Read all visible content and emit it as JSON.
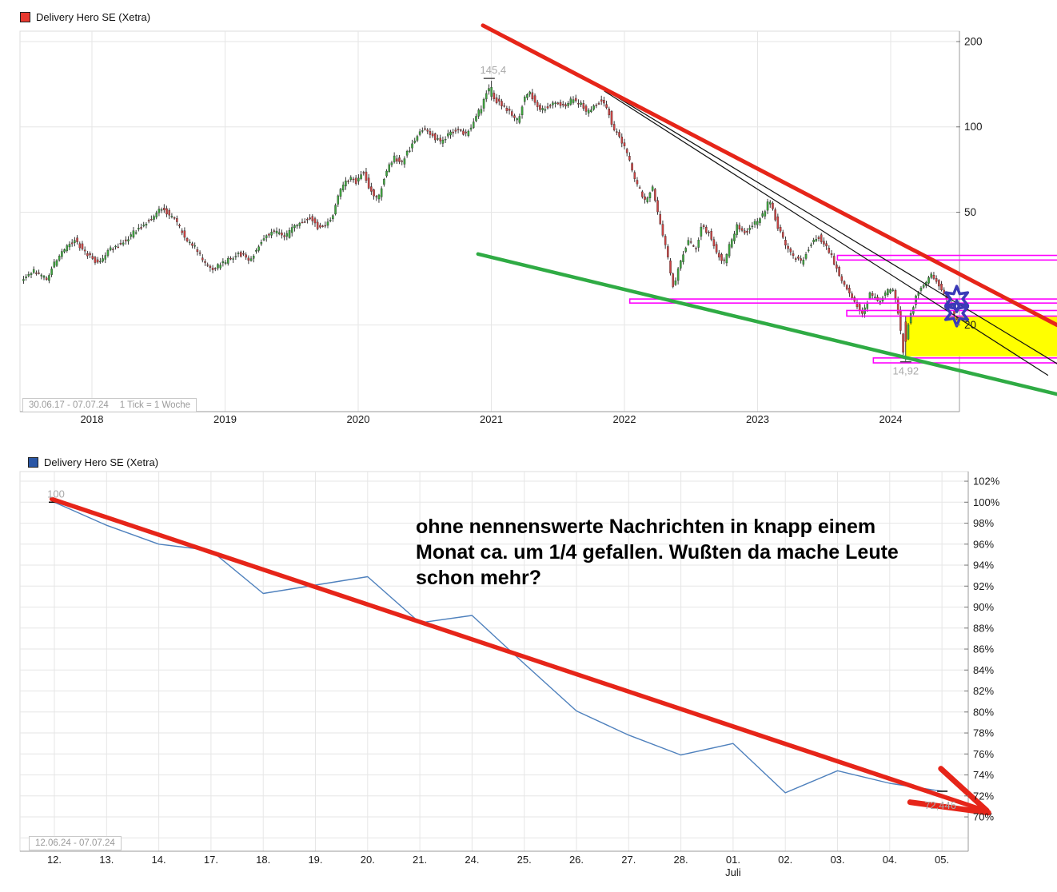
{
  "chart_data": [
    {
      "type": "candlestick",
      "title": "Delivery Hero SE (Xetra)",
      "legend_color": "#e8392f",
      "period": "30.06.17 - 07.07.24",
      "tick_note": "1 Tick = 1 Woche",
      "x_ticks": [
        "2018",
        "2019",
        "2020",
        "2021",
        "2022",
        "2023",
        "2024"
      ],
      "y_ticks": [
        200,
        100,
        50,
        20
      ],
      "y_scale": "log",
      "x_range_years": [
        2017.48,
        2024.51
      ],
      "annotations": {
        "high": {
          "t": 2020.99,
          "price": 145.4,
          "label": "145,4"
        },
        "low": {
          "t": 2024.107,
          "price": 14.92,
          "label": "14,92"
        }
      },
      "price_path_anchors": [
        [
          2017.48,
          29
        ],
        [
          2017.58,
          31
        ],
        [
          2017.67,
          29
        ],
        [
          2017.76,
          35
        ],
        [
          2017.88,
          40
        ],
        [
          2017.97,
          36
        ],
        [
          2018.06,
          33
        ],
        [
          2018.15,
          37
        ],
        [
          2018.27,
          40
        ],
        [
          2018.36,
          44
        ],
        [
          2018.48,
          48
        ],
        [
          2018.54,
          52
        ],
        [
          2018.63,
          47
        ],
        [
          2018.72,
          40
        ],
        [
          2018.78,
          38
        ],
        [
          2018.84,
          34
        ],
        [
          2018.9,
          31.5
        ],
        [
          2019.0,
          33
        ],
        [
          2019.11,
          36
        ],
        [
          2019.2,
          34
        ],
        [
          2019.29,
          40
        ],
        [
          2019.38,
          43
        ],
        [
          2019.47,
          41
        ],
        [
          2019.56,
          46
        ],
        [
          2019.65,
          48
        ],
        [
          2019.71,
          44
        ],
        [
          2019.8,
          46
        ],
        [
          2019.89,
          62
        ],
        [
          2019.95,
          66
        ],
        [
          2020.0,
          64
        ],
        [
          2020.05,
          70
        ],
        [
          2020.1,
          60
        ],
        [
          2020.16,
          55
        ],
        [
          2020.22,
          70
        ],
        [
          2020.28,
          78
        ],
        [
          2020.34,
          75
        ],
        [
          2020.4,
          84
        ],
        [
          2020.46,
          95
        ],
        [
          2020.52,
          100
        ],
        [
          2020.58,
          92
        ],
        [
          2020.64,
          88
        ],
        [
          2020.7,
          95
        ],
        [
          2020.76,
          98
        ],
        [
          2020.82,
          94
        ],
        [
          2020.88,
          105
        ],
        [
          2020.94,
          118
        ],
        [
          2020.99,
          138
        ],
        [
          2021.03,
          125
        ],
        [
          2021.09,
          120
        ],
        [
          2021.15,
          112
        ],
        [
          2021.21,
          105
        ],
        [
          2021.26,
          128
        ],
        [
          2021.3,
          132
        ],
        [
          2021.35,
          120
        ],
        [
          2021.39,
          114
        ],
        [
          2021.45,
          118
        ],
        [
          2021.51,
          122
        ],
        [
          2021.57,
          118
        ],
        [
          2021.62,
          125
        ],
        [
          2021.68,
          120
        ],
        [
          2021.74,
          112
        ],
        [
          2021.78,
          118
        ],
        [
          2021.84,
          125
        ],
        [
          2021.89,
          115
        ],
        [
          2021.93,
          98
        ],
        [
          2022.0,
          88
        ],
        [
          2022.05,
          75
        ],
        [
          2022.11,
          62
        ],
        [
          2022.17,
          55
        ],
        [
          2022.22,
          62
        ],
        [
          2022.27,
          48
        ],
        [
          2022.32,
          38
        ],
        [
          2022.38,
          27
        ],
        [
          2022.43,
          33
        ],
        [
          2022.49,
          40
        ],
        [
          2022.55,
          37
        ],
        [
          2022.59,
          45
        ],
        [
          2022.65,
          42
        ],
        [
          2022.71,
          36
        ],
        [
          2022.76,
          33
        ],
        [
          2022.8,
          38
        ],
        [
          2022.86,
          45
        ],
        [
          2022.92,
          42
        ],
        [
          2023.0,
          46
        ],
        [
          2023.06,
          50
        ],
        [
          2023.1,
          56
        ],
        [
          2023.16,
          45
        ],
        [
          2023.22,
          38
        ],
        [
          2023.28,
          35
        ],
        [
          2023.34,
          33
        ],
        [
          2023.4,
          38
        ],
        [
          2023.47,
          41
        ],
        [
          2023.53,
          38
        ],
        [
          2023.59,
          33
        ],
        [
          2023.63,
          30
        ],
        [
          2023.68,
          27
        ],
        [
          2023.74,
          24
        ],
        [
          2023.8,
          22
        ],
        [
          2023.86,
          26
        ],
        [
          2023.92,
          24
        ],
        [
          2023.98,
          26
        ],
        [
          2024.03,
          27
        ],
        [
          2024.07,
          22
        ],
        [
          2024.107,
          16
        ],
        [
          2024.15,
          21
        ],
        [
          2024.2,
          25
        ],
        [
          2024.24,
          27
        ],
        [
          2024.32,
          30
        ],
        [
          2024.37,
          28
        ],
        [
          2024.43,
          25
        ],
        [
          2024.47,
          23
        ],
        [
          2024.498,
          21
        ]
      ],
      "candle_up_color": "#3fa43f",
      "candle_down_color": "#c94444",
      "trendlines": [
        {
          "name": "red-resistance-line",
          "color": "#e62519",
          "width": 5,
          "from": [
            2020.937,
            228
          ],
          "to": [
            2025.25,
            20
          ]
        },
        {
          "name": "green-support-line",
          "color": "#2fab44",
          "width": 4.5,
          "from": [
            2020.9,
            35.6
          ],
          "to": [
            2025.25,
            11.4
          ]
        },
        {
          "name": "black-channel-line-1",
          "color": "#111111",
          "width": 1.2,
          "from": [
            2021.81,
            139
          ],
          "to": [
            2025.25,
            14.6
          ]
        },
        {
          "name": "black-channel-line-2",
          "color": "#111111",
          "width": 1.2,
          "from": [
            2021.85,
            133.7
          ],
          "to": [
            2025.18,
            13.3
          ]
        }
      ],
      "zones": [
        {
          "name": "yellow-target-zone",
          "color": "#ffff00",
          "t": [
            2024.115,
            2025.3
          ],
          "price": [
            21.4,
            15.5
          ]
        }
      ],
      "magenta_boxes": [
        {
          "t": [
            2023.6,
            2025.3
          ],
          "price": [
            35.2,
            33.9
          ]
        },
        {
          "t": [
            2022.04,
            2025.3
          ],
          "price": [
            24.7,
            23.9
          ]
        },
        {
          "t": [
            2023.67,
            2025.3
          ],
          "price": [
            22.5,
            21.5
          ]
        },
        {
          "t": [
            2023.87,
            2025.3
          ],
          "price": [
            15.3,
            14.7
          ]
        }
      ],
      "magenta_color": "#ff00ff",
      "markers": [
        {
          "shape": "star6",
          "color": "#3a3ab8",
          "t": 2024.49,
          "price": 24.7
        },
        {
          "shape": "star6",
          "color": "#3a3ab8",
          "t": 2024.49,
          "price": 22.0
        }
      ]
    },
    {
      "type": "line",
      "title": "Delivery Hero SE (Xetra)",
      "legend_color": "#2a56a5",
      "period": "12.06.24 - 07.07.24",
      "x_ticks": [
        "12.",
        "13.",
        "14.",
        "17.",
        "18.",
        "19.",
        "20.",
        "21.",
        "24.",
        "25.",
        "26.",
        "27.",
        "28.",
        "01.",
        "02.",
        "03.",
        "04.",
        "05."
      ],
      "x_month_label": {
        "tick_index": 13,
        "label": "Juli"
      },
      "y_ticks": [
        "102%",
        "100%",
        "98%",
        "96%",
        "94%",
        "92%",
        "90%",
        "88%",
        "86%",
        "84%",
        "82%",
        "80%",
        "78%",
        "76%",
        "74%",
        "72%",
        "70%"
      ],
      "values_pct": [
        100,
        97.8,
        96,
        95.4,
        91.3,
        92.1,
        92.9,
        88.5,
        89.2,
        84.6,
        80.1,
        77.8,
        75.9,
        77.0,
        72.3,
        74.4,
        73.2,
        72.446
      ],
      "start_label": "100",
      "end_label": "72,446",
      "line_color": "#4f81bd",
      "trendline": {
        "color": "#e62519",
        "width": 5.5,
        "from": {
          "idx": -0.05,
          "pct": 100.3
        },
        "to": {
          "idx": 17.83,
          "pct": 70.6
        }
      },
      "arrows": [
        {
          "color": "#e62519",
          "width": 7,
          "from": {
            "idx": 16.98,
            "pct": 74.6
          },
          "to": {
            "idx": 17.86,
            "pct": 70.6
          }
        },
        {
          "color": "#e62519",
          "width": 7,
          "from": {
            "idx": 16.39,
            "pct": 71.4
          },
          "to": {
            "idx": 17.89,
            "pct": 70.4
          }
        }
      ],
      "annotation": "ohne nennenswerte Nachrichten in knapp einem Monat ca. um 1/4 gefallen. Wußten da mache Leute schon mehr?"
    }
  ]
}
